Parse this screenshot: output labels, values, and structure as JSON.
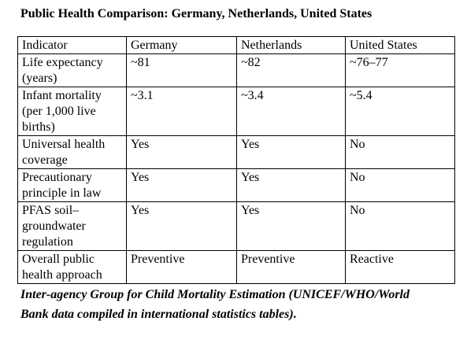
{
  "header": {
    "title": "Public Health Comparison: Germany, Netherlands, United States"
  },
  "table": {
    "columns": [
      "Indicator",
      "Germany",
      "Netherlands",
      "United States"
    ],
    "rows": [
      [
        "Life expectancy (years)",
        "~81",
        "~82",
        "~76–77"
      ],
      [
        "Infant mortality (per 1,000 live births)",
        "~3.1",
        "~3.4",
        "~5.4"
      ],
      [
        "Universal health coverage",
        "Yes",
        "Yes",
        "No"
      ],
      [
        "Precautionary principle in law",
        "Yes",
        "Yes",
        "No"
      ],
      [
        "PFAS soil–groundwater regulation",
        "Yes",
        "Yes",
        "No"
      ],
      [
        "Overall public health approach",
        "Preventive",
        "Preventive",
        "Reactive"
      ]
    ]
  },
  "caption": "Inter-agency Group for Child Mortality Estimation (UNICEF/WHO/World Bank data compiled in international statistics tables)."
}
